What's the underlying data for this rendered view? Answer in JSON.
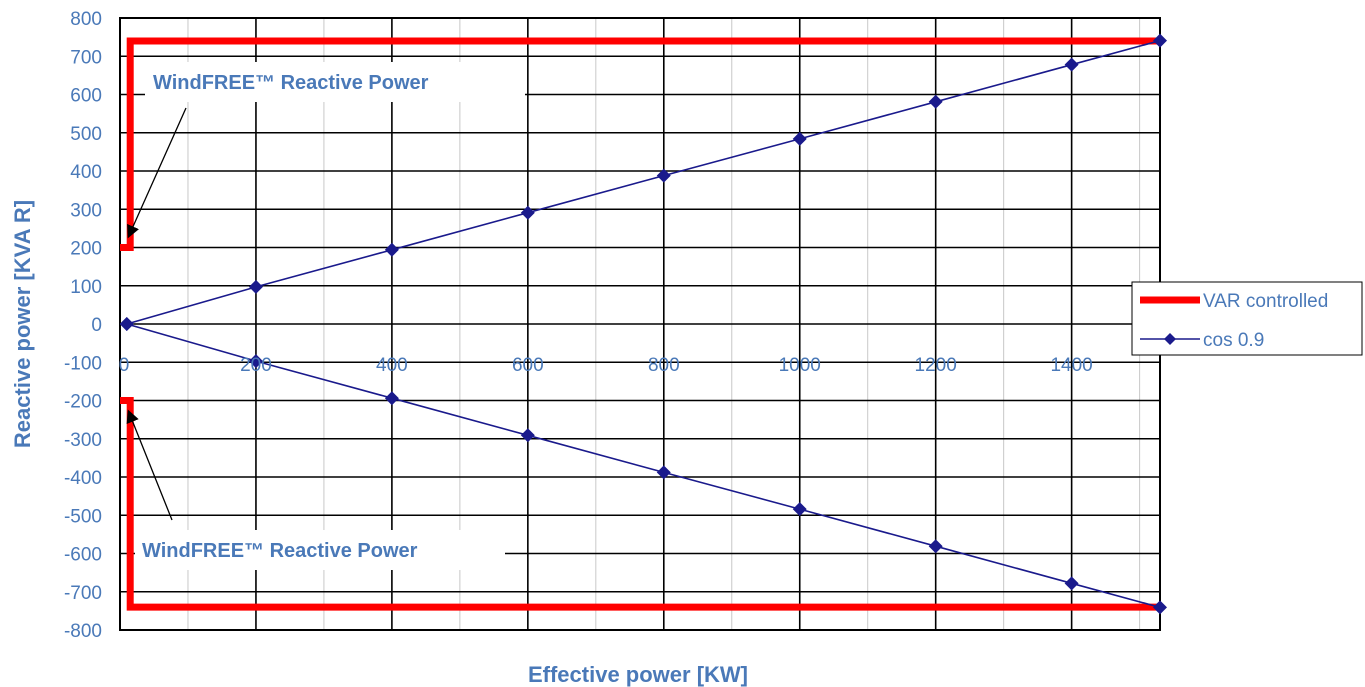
{
  "chart_data": {
    "type": "line",
    "title": "",
    "xlabel": "Effective power [KW]",
    "ylabel": "Reactive power [KVA R]",
    "xlim": [
      0,
      1530
    ],
    "ylim": [
      -800,
      800
    ],
    "xticks": [
      0,
      200,
      400,
      600,
      800,
      1000,
      1200,
      1400
    ],
    "xtick_labels": [
      "0",
      "200",
      "400",
      "600",
      "800",
      "1000",
      "1200",
      "1400"
    ],
    "yticks": [
      800,
      700,
      600,
      500,
      400,
      300,
      200,
      100,
      0,
      -100,
      -200,
      -300,
      -400,
      -500,
      -600,
      -700,
      -800
    ],
    "ytick_labels": [
      "800",
      "700",
      "600",
      "500",
      "400",
      "300",
      "200",
      "100",
      "0",
      "-100",
      "-200",
      "-300",
      "-400",
      "-500",
      "-600",
      "-700",
      "-800"
    ],
    "grid": true,
    "legend_position": "right",
    "series": [
      {
        "name": "VAR controlled",
        "color": "#ff0000",
        "segments": [
          [
            [
              0,
              200
            ],
            [
              15,
              200
            ],
            [
              15,
              740
            ],
            [
              1530,
              740
            ]
          ],
          [
            [
              0,
              -200
            ],
            [
              15,
              -200
            ],
            [
              15,
              -740
            ],
            [
              1530,
              -740
            ]
          ]
        ]
      },
      {
        "name": "cos 0.9",
        "color": "#1a1a8c",
        "marker": "diamond",
        "segments": [
          [
            [
              10,
              0
            ],
            [
              200,
              97
            ],
            [
              400,
              194
            ],
            [
              600,
              291
            ],
            [
              800,
              388
            ],
            [
              1000,
              484
            ],
            [
              1200,
              581
            ],
            [
              1400,
              678
            ],
            [
              1530,
              741
            ]
          ],
          [
            [
              10,
              0
            ],
            [
              200,
              -97
            ],
            [
              400,
              -194
            ],
            [
              600,
              -291
            ],
            [
              800,
              -388
            ],
            [
              1000,
              -484
            ],
            [
              1200,
              -581
            ],
            [
              1400,
              -678
            ],
            [
              1530,
              -741
            ]
          ]
        ]
      }
    ],
    "annotations": [
      {
        "text": "WindFREE™ Reactive Power",
        "target": [
          10,
          230
        ]
      },
      {
        "text": "WindFREE™ Reactive Power",
        "target": [
          10,
          -230
        ]
      }
    ]
  }
}
